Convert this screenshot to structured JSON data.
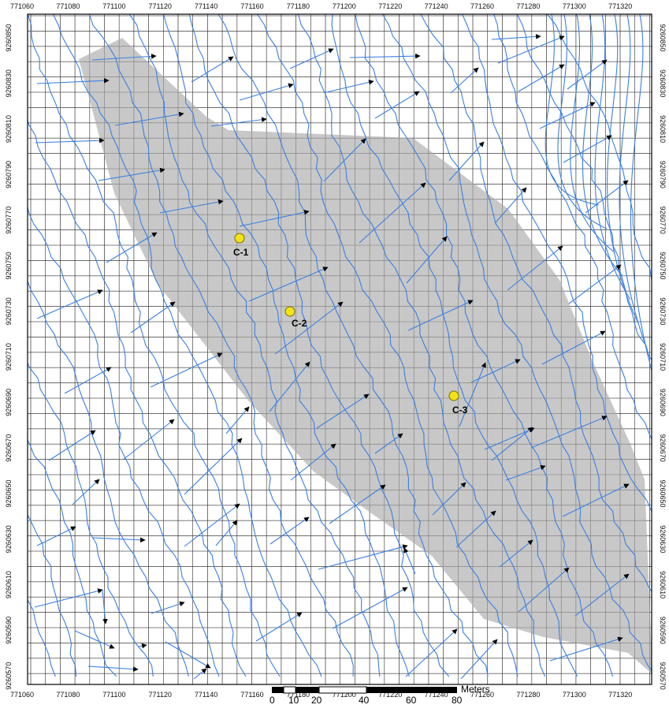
{
  "map": {
    "x_ticks": [
      "771060",
      "771080",
      "771100",
      "771120",
      "771140",
      "771160",
      "771180",
      "771200",
      "771220",
      "771240",
      "771260",
      "771280",
      "771300",
      "771320"
    ],
    "y_ticks": [
      "9260850",
      "9260830",
      "9260810",
      "9260790",
      "9260770",
      "9260750",
      "9260730",
      "9260710",
      "9260690",
      "9260670",
      "9260650",
      "9260630",
      "9260610",
      "9260590",
      "9260570"
    ],
    "colors": {
      "grid": "#3a3a3a",
      "frame": "#000000",
      "shaded_area": "#c8c8c8",
      "contour": "#3b7fe0",
      "vector": "#3b7fe0",
      "arrowhead": "#000000",
      "well_fill": "#f2e21a",
      "well_stroke": "#7a7000"
    },
    "wells": [
      {
        "id": "C-1",
        "label": "C-1"
      },
      {
        "id": "C-2",
        "label": "C-2"
      },
      {
        "id": "C-3",
        "label": "C-3"
      }
    ],
    "scale_bar": {
      "labels": [
        "0",
        "10",
        "20",
        "40",
        "60",
        "80"
      ],
      "unit": "Meters"
    }
  }
}
